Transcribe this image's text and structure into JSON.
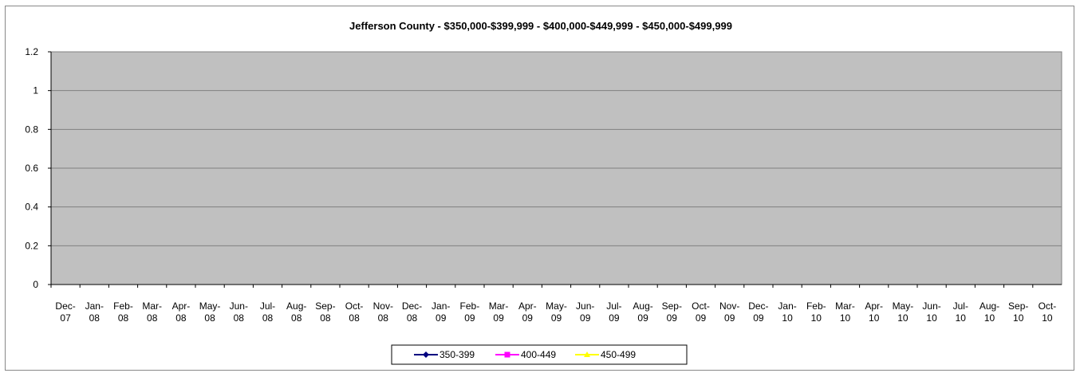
{
  "chart_data": {
    "type": "line",
    "title": "Jefferson County  -  $350,000-$399,999  -  $400,000-$449,999  -  $450,000-$499,999",
    "categories": [
      "Dec-07",
      "Jan-08",
      "Feb-08",
      "Mar-08",
      "Apr-08",
      "May-08",
      "Jun-08",
      "Jul-08",
      "Aug-08",
      "Sep-08",
      "Oct-08",
      "Nov-08",
      "Dec-08",
      "Jan-09",
      "Feb-09",
      "Mar-09",
      "Apr-09",
      "May-09",
      "Jun-09",
      "Jul-09",
      "Aug-09",
      "Sep-09",
      "Oct-09",
      "Nov-09",
      "Dec-09",
      "Jan-10",
      "Feb-10",
      "Mar-10",
      "Apr-10",
      "May-10",
      "Jun-10",
      "Jul-10",
      "Aug-10",
      "Sep-10",
      "Oct-10"
    ],
    "series": [
      {
        "name": "350-399",
        "color": "#000080",
        "marker": "diamond",
        "values": [
          null,
          null,
          null,
          null,
          null,
          null,
          null,
          null,
          null,
          null,
          null,
          null,
          null,
          null,
          null,
          null,
          null,
          null,
          null,
          null,
          null,
          null,
          null,
          null,
          null,
          null,
          null,
          null,
          null,
          null,
          null,
          null,
          null,
          null,
          null
        ]
      },
      {
        "name": "400-449",
        "color": "#ff00ff",
        "marker": "square",
        "values": [
          null,
          null,
          null,
          null,
          null,
          null,
          null,
          null,
          null,
          null,
          null,
          null,
          null,
          null,
          null,
          null,
          null,
          null,
          null,
          null,
          null,
          null,
          null,
          null,
          null,
          null,
          null,
          null,
          null,
          null,
          null,
          null,
          null,
          null,
          null
        ]
      },
      {
        "name": "450-499",
        "color": "#ffff00",
        "marker": "triangle",
        "values": [
          null,
          null,
          null,
          null,
          null,
          null,
          null,
          null,
          null,
          null,
          null,
          null,
          null,
          null,
          null,
          null,
          null,
          null,
          null,
          null,
          null,
          null,
          null,
          null,
          null,
          null,
          null,
          null,
          null,
          null,
          null,
          null,
          null,
          null,
          null
        ]
      }
    ],
    "ylim": [
      0,
      1.2
    ],
    "yticks": [
      0,
      0.2,
      0.4,
      0.6,
      0.8,
      1,
      1.2
    ],
    "grid": true,
    "legend": "bottom"
  }
}
